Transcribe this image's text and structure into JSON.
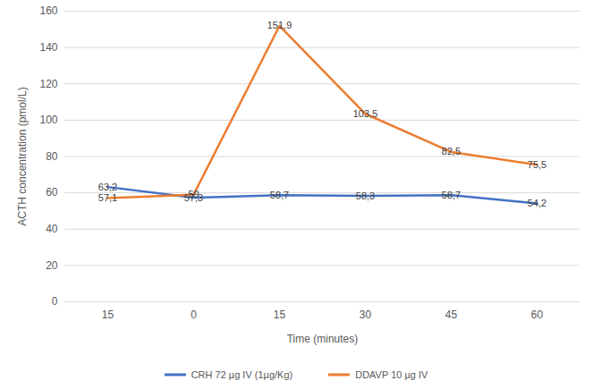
{
  "chart_data": {
    "type": "line",
    "x_label": "Time (minutes)",
    "y_label": "ACTH concentration (pmol/L)",
    "categories": [
      "15",
      "0",
      "15",
      "30",
      "45",
      "60"
    ],
    "series": [
      {
        "name": "CRH 72 µg IV (1µg/Kg)",
        "color": "#4472c4",
        "values": [
          63.2,
          57.3,
          58.7,
          58.3,
          58.7,
          54.2
        ],
        "value_labels": [
          "63,2",
          "57,3",
          "58,7",
          "58,3",
          "58,7",
          "54,2"
        ]
      },
      {
        "name": "DDAVP 10 µg IV",
        "color": "#ed7d31",
        "values": [
          57.1,
          59,
          151.9,
          103.5,
          82.5,
          75.5
        ],
        "value_labels": [
          "57,1",
          "59",
          "151,9",
          "103,5",
          "82,5",
          "75,5"
        ]
      }
    ],
    "ylim": [
      0,
      160
    ],
    "yticks": [
      0,
      20,
      40,
      60,
      80,
      100,
      120,
      140,
      160
    ],
    "grid": true,
    "legend": "bottom",
    "data_labels": true
  }
}
